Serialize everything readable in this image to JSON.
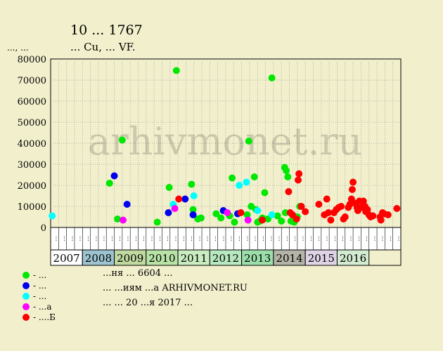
{
  "chart_data": {
    "type": "scatter",
    "title": "10 ... 1767",
    "subtitle": "... Cu, ... VF.",
    "ylabel": "..., ...",
    "ylim": [
      0,
      80000
    ],
    "yticks": [
      "0",
      "10000",
      "20000",
      "30000",
      "40000",
      "50000",
      "60000",
      "70000",
      "80000"
    ],
    "grid": true,
    "watermark": "arhivmonet.ru",
    "months": [
      "...",
      "...",
      "...",
      "...",
      "...",
      "...",
      "...",
      "..."
    ],
    "years": [
      "2007",
      "2008",
      "2009",
      "2010",
      "2011",
      "2012",
      "2013",
      "2014",
      "2015",
      "2016"
    ],
    "year_colors": [
      "#ffffff",
      "#9cc3cf",
      "#bfd9a0",
      "#b8e3a7",
      "#c9ecc0",
      "#b7e8bf",
      "#9cdeaa",
      "#b4b5a8",
      "#dfd3e6",
      "#d3ebd0"
    ],
    "legend": [
      {
        "label": "- ...",
        "color": "#00e800"
      },
      {
        "label": "- ...",
        "color": "#0000ee"
      },
      {
        "label": "- ...",
        "color": "#00ffff"
      },
      {
        "label": "- ...а",
        "color": "#ff00ff"
      },
      {
        "label": "- ....Б",
        "color": "#ff0000"
      }
    ],
    "footer": [
      "...ня ... 6604 ...",
      "... ...иям ...а ARHIVMONET.RU",
      "... ... 20 ...я 2017 ..."
    ],
    "series": [
      {
        "color": "#00e800",
        "points": [
          [
            7.4,
            21000
          ],
          [
            8.4,
            4000
          ],
          [
            9.0,
            41500
          ],
          [
            13.4,
            2500
          ],
          [
            14.9,
            19000
          ],
          [
            15.8,
            74500
          ],
          [
            17.7,
            20500
          ],
          [
            17.9,
            8500
          ],
          [
            18.5,
            4000
          ],
          [
            18.9,
            4500
          ],
          [
            20.8,
            6500
          ],
          [
            21.4,
            4500
          ],
          [
            22.5,
            5500
          ],
          [
            22.8,
            23500
          ],
          [
            23.1,
            2500
          ],
          [
            24.7,
            6000
          ],
          [
            24.9,
            41000
          ],
          [
            25.2,
            10000
          ],
          [
            25.6,
            24000
          ],
          [
            26.0,
            2500
          ],
          [
            26.3,
            3000
          ],
          [
            26.6,
            4500
          ],
          [
            26.9,
            16500
          ],
          [
            27.3,
            4000
          ],
          [
            27.8,
            71000
          ],
          [
            28.5,
            5500
          ],
          [
            29.0,
            3000
          ],
          [
            29.4,
            28500
          ],
          [
            29.6,
            27000
          ],
          [
            29.8,
            24000
          ],
          [
            30.2,
            3000
          ],
          [
            30.6,
            2500
          ],
          [
            31.0,
            5000
          ],
          [
            31.3,
            10000
          ],
          [
            29.5,
            7000
          ],
          [
            25.8,
            8500
          ]
        ]
      },
      {
        "color": "#0000ee",
        "points": [
          [
            8.0,
            24500
          ],
          [
            9.6,
            11000
          ],
          [
            14.8,
            7000
          ],
          [
            16.9,
            13500
          ],
          [
            17.9,
            6000
          ],
          [
            21.7,
            8000
          ],
          [
            23.5,
            6500
          ]
        ]
      },
      {
        "color": "#00ffff",
        "points": [
          [
            0.2,
            5500
          ],
          [
            15.4,
            11000
          ],
          [
            18.0,
            15000
          ],
          [
            23.7,
            20000
          ],
          [
            24.6,
            21500
          ],
          [
            26.0,
            8000
          ],
          [
            27.8,
            6000
          ]
        ]
      },
      {
        "color": "#ff00ff",
        "points": [
          [
            9.1,
            3500
          ],
          [
            15.6,
            9000
          ],
          [
            22.2,
            7000
          ],
          [
            24.8,
            3500
          ]
        ]
      },
      {
        "color": "#ff0000",
        "points": [
          [
            16.1,
            13500
          ],
          [
            23.9,
            7000
          ],
          [
            26.6,
            3500
          ],
          [
            29.9,
            17000
          ],
          [
            30.1,
            7000
          ],
          [
            30.4,
            6000
          ],
          [
            30.9,
            4000
          ],
          [
            31.1,
            22500
          ],
          [
            31.2,
            25500
          ],
          [
            31.5,
            10000
          ],
          [
            32.0,
            7500
          ],
          [
            33.7,
            11000
          ],
          [
            34.4,
            6000
          ],
          [
            34.7,
            13500
          ],
          [
            34.9,
            7000
          ],
          [
            35.2,
            3500
          ],
          [
            35.6,
            7000
          ],
          [
            35.9,
            8500
          ],
          [
            36.2,
            9500
          ],
          [
            36.5,
            10000
          ],
          [
            36.8,
            4000
          ],
          [
            37.0,
            5000
          ],
          [
            37.4,
            9500
          ],
          [
            37.6,
            11000
          ],
          [
            37.8,
            13500
          ],
          [
            37.9,
            18000
          ],
          [
            38.0,
            21500
          ],
          [
            38.3,
            11500
          ],
          [
            38.5,
            9500
          ],
          [
            38.6,
            8000
          ],
          [
            38.8,
            12500
          ],
          [
            39.1,
            9500
          ],
          [
            39.3,
            12500
          ],
          [
            39.5,
            10000
          ],
          [
            39.6,
            7500
          ],
          [
            39.8,
            8500
          ],
          [
            40.0,
            6000
          ],
          [
            40.2,
            5000
          ],
          [
            40.5,
            5500
          ],
          [
            41.4,
            5000
          ],
          [
            41.5,
            3500
          ],
          [
            41.7,
            7000
          ],
          [
            41.9,
            6500
          ],
          [
            42.4,
            6000
          ],
          [
            43.5,
            9000
          ]
        ]
      }
    ]
  }
}
